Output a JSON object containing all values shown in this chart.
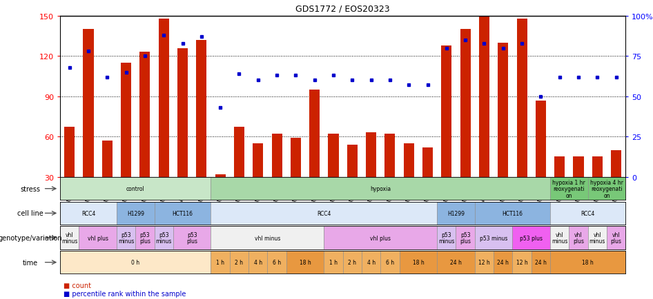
{
  "title": "GDS1772 / EOS20323",
  "samples": [
    "GSM95386",
    "GSM95549",
    "GSM95397",
    "GSM95551",
    "GSM95577",
    "GSM95579",
    "GSM95581",
    "GSM95584",
    "GSM95554",
    "GSM95555",
    "GSM95556",
    "GSM95557",
    "GSM95396",
    "GSM95550",
    "GSM95558",
    "GSM95559",
    "GSM95560",
    "GSM95561",
    "GSM95398",
    "GSM95552",
    "GSM95578",
    "GSM95580",
    "GSM95582",
    "GSM95583",
    "GSM95585",
    "GSM95586",
    "GSM95572",
    "GSM95574",
    "GSM95573",
    "GSM95575"
  ],
  "count": [
    67,
    140,
    57,
    115,
    123,
    148,
    126,
    132,
    32,
    67,
    55,
    62,
    59,
    95,
    62,
    54,
    63,
    62,
    55,
    52,
    128,
    140,
    150,
    130,
    148,
    87,
    45,
    45,
    45,
    50
  ],
  "percentile": [
    68,
    78,
    62,
    65,
    75,
    88,
    83,
    87,
    43,
    64,
    60,
    63,
    63,
    60,
    63,
    60,
    60,
    60,
    57,
    57,
    80,
    85,
    83,
    80,
    83,
    50,
    62,
    62,
    62,
    62
  ],
  "stress_regions": [
    {
      "label": "control",
      "start": 0,
      "end": 8,
      "color": "#c8e6c8"
    },
    {
      "label": "hypoxia",
      "start": 8,
      "end": 26,
      "color": "#a8d8a8"
    },
    {
      "label": "hypoxia 1 hr\nreoxygenati\non",
      "start": 26,
      "end": 28,
      "color": "#78c878"
    },
    {
      "label": "hypoxia 4 hr\nreoxygenati\non",
      "start": 28,
      "end": 30,
      "color": "#78c878"
    }
  ],
  "cellline_regions": [
    {
      "label": "RCC4",
      "start": 0,
      "end": 3,
      "color": "#dce8f8"
    },
    {
      "label": "H1299",
      "start": 3,
      "end": 5,
      "color": "#8cb4e0"
    },
    {
      "label": "HCT116",
      "start": 5,
      "end": 8,
      "color": "#8cb4e0"
    },
    {
      "label": "RCC4",
      "start": 8,
      "end": 20,
      "color": "#dce8f8"
    },
    {
      "label": "H1299",
      "start": 20,
      "end": 22,
      "color": "#8cb4e0"
    },
    {
      "label": "HCT116",
      "start": 22,
      "end": 26,
      "color": "#8cb4e0"
    },
    {
      "label": "RCC4",
      "start": 26,
      "end": 30,
      "color": "#dce8f8"
    }
  ],
  "genotype_regions": [
    {
      "label": "vhl\nminus",
      "start": 0,
      "end": 1,
      "color": "#f0f0f0"
    },
    {
      "label": "vhl plus",
      "start": 1,
      "end": 3,
      "color": "#e8a8e8"
    },
    {
      "label": "p53\nminus",
      "start": 3,
      "end": 4,
      "color": "#d8c0f0"
    },
    {
      "label": "p53\nplus",
      "start": 4,
      "end": 5,
      "color": "#e8a8e8"
    },
    {
      "label": "p53\nminus",
      "start": 5,
      "end": 6,
      "color": "#d8c0f0"
    },
    {
      "label": "p53\nplus",
      "start": 6,
      "end": 8,
      "color": "#e8a8e8"
    },
    {
      "label": "vhl minus",
      "start": 8,
      "end": 14,
      "color": "#f0f0f0"
    },
    {
      "label": "vhl plus",
      "start": 14,
      "end": 20,
      "color": "#e8a8e8"
    },
    {
      "label": "p53\nminus",
      "start": 20,
      "end": 21,
      "color": "#d8c0f0"
    },
    {
      "label": "p53\nplus",
      "start": 21,
      "end": 22,
      "color": "#e8a8e8"
    },
    {
      "label": "p53 minus",
      "start": 22,
      "end": 24,
      "color": "#d8c0f0"
    },
    {
      "label": "p53 plus",
      "start": 24,
      "end": 26,
      "color": "#f060f0"
    },
    {
      "label": "vhl\nminus",
      "start": 26,
      "end": 27,
      "color": "#f0f0f0"
    },
    {
      "label": "vhl\nplus",
      "start": 27,
      "end": 28,
      "color": "#e8a8e8"
    },
    {
      "label": "vhl\nminus",
      "start": 28,
      "end": 29,
      "color": "#f0f0f0"
    },
    {
      "label": "vhl\nplus",
      "start": 29,
      "end": 30,
      "color": "#e8a8e8"
    }
  ],
  "time_regions": [
    {
      "label": "0 h",
      "start": 0,
      "end": 8,
      "color": "#fde8c8"
    },
    {
      "label": "1 h",
      "start": 8,
      "end": 9,
      "color": "#f0b060"
    },
    {
      "label": "2 h",
      "start": 9,
      "end": 10,
      "color": "#f0b060"
    },
    {
      "label": "4 h",
      "start": 10,
      "end": 11,
      "color": "#f0b060"
    },
    {
      "label": "6 h",
      "start": 11,
      "end": 12,
      "color": "#f0b060"
    },
    {
      "label": "18 h",
      "start": 12,
      "end": 14,
      "color": "#e89840"
    },
    {
      "label": "1 h",
      "start": 14,
      "end": 15,
      "color": "#f0b060"
    },
    {
      "label": "2 h",
      "start": 15,
      "end": 16,
      "color": "#f0b060"
    },
    {
      "label": "4 h",
      "start": 16,
      "end": 17,
      "color": "#f0b060"
    },
    {
      "label": "6 h",
      "start": 17,
      "end": 18,
      "color": "#f0b060"
    },
    {
      "label": "18 h",
      "start": 18,
      "end": 20,
      "color": "#e89840"
    },
    {
      "label": "24 h",
      "start": 20,
      "end": 22,
      "color": "#e89840"
    },
    {
      "label": "12 h",
      "start": 22,
      "end": 23,
      "color": "#f0b060"
    },
    {
      "label": "24 h",
      "start": 23,
      "end": 24,
      "color": "#e89840"
    },
    {
      "label": "12 h",
      "start": 24,
      "end": 25,
      "color": "#f0b060"
    },
    {
      "label": "24 h",
      "start": 25,
      "end": 26,
      "color": "#e89840"
    },
    {
      "label": "18 h",
      "start": 26,
      "end": 30,
      "color": "#e89840"
    }
  ],
  "bar_color": "#cc2200",
  "dot_color": "#0000cc",
  "left_yticks": [
    30,
    60,
    90,
    120,
    150
  ],
  "right_ytick_vals": [
    0,
    25,
    50,
    75,
    100
  ],
  "right_ytick_labels": [
    "0",
    "25",
    "50",
    "75",
    "100%"
  ],
  "ymin": 30,
  "ymax": 150,
  "gridlines": [
    60,
    90,
    120
  ]
}
